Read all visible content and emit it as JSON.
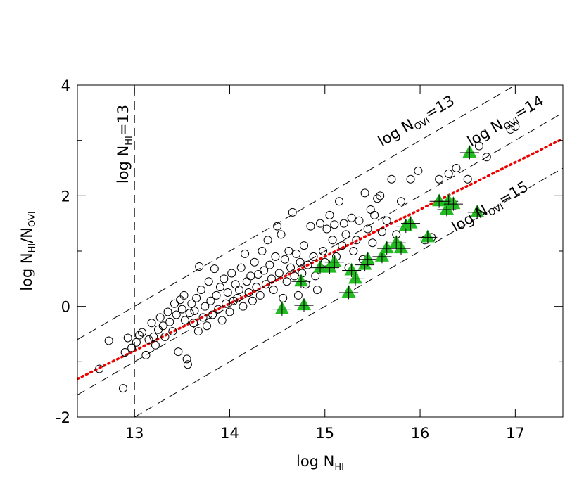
{
  "chart_data": {
    "type": "scatter",
    "x_label": [
      "log N",
      "HI"
    ],
    "y_label": [
      "log N",
      "HI",
      "/N",
      "OVI"
    ],
    "xlim": [
      12.4,
      17.5
    ],
    "ylim": [
      -2,
      4
    ],
    "xticks": [
      13,
      14,
      15,
      16,
      17
    ],
    "yticks": [
      -2,
      0,
      2,
      4
    ],
    "yminorticks": [
      -1,
      1,
      3
    ],
    "series": [
      {
        "marker": "circle",
        "color": "#000000",
        "x": [
          12.63,
          12.73,
          12.88,
          12.9,
          12.93,
          12.97,
          13.02,
          13.05,
          13.08,
          13.12,
          13.15,
          13.18,
          13.2,
          13.22,
          13.25,
          13.27,
          13.3,
          13.32,
          13.35,
          13.37,
          13.4,
          13.42,
          13.44,
          13.46,
          13.48,
          13.5,
          13.52,
          13.53,
          13.55,
          13.56,
          13.58,
          13.6,
          13.62,
          13.63,
          13.65,
          13.67,
          13.68,
          13.7,
          13.72,
          13.74,
          13.76,
          13.78,
          13.8,
          13.82,
          13.84,
          13.86,
          13.88,
          13.9,
          13.92,
          13.94,
          13.96,
          13.98,
          14.0,
          14.02,
          14.04,
          14.06,
          14.08,
          14.1,
          14.12,
          14.14,
          14.16,
          14.18,
          14.2,
          14.22,
          14.24,
          14.26,
          14.28,
          14.3,
          14.32,
          14.34,
          14.36,
          14.38,
          14.4,
          14.42,
          14.44,
          14.46,
          14.48,
          14.5,
          14.52,
          14.54,
          14.56,
          14.58,
          14.6,
          14.62,
          14.64,
          14.66,
          14.68,
          14.7,
          14.72,
          14.74,
          14.76,
          14.78,
          14.8,
          14.82,
          14.85,
          14.88,
          14.9,
          14.92,
          14.95,
          14.98,
          15.0,
          15.02,
          15.05,
          15.08,
          15.1,
          15.12,
          15.15,
          15.18,
          15.2,
          15.22,
          15.25,
          15.28,
          15.3,
          15.33,
          15.36,
          15.4,
          15.42,
          15.45,
          15.48,
          15.5,
          15.52,
          15.55,
          15.58,
          15.6,
          15.65,
          15.7,
          15.75,
          15.8,
          15.9,
          15.98,
          16.05,
          16.12,
          16.2,
          16.3,
          16.38,
          16.5,
          16.62,
          16.7,
          16.95,
          17.0
        ],
        "values": [
          -1.13,
          -0.62,
          -1.48,
          -0.83,
          -0.57,
          -0.75,
          -0.65,
          -0.52,
          -0.47,
          -0.88,
          -0.6,
          -0.3,
          -0.55,
          -0.7,
          -0.42,
          -0.2,
          -0.35,
          -0.55,
          -0.1,
          -0.28,
          -0.45,
          0.05,
          -0.15,
          -0.82,
          0.12,
          -0.05,
          0.2,
          -0.25,
          -0.95,
          -1.05,
          -0.12,
          0.05,
          -0.3,
          -0.08,
          0.15,
          -0.45,
          0.72,
          0.3,
          -0.2,
          0.0,
          -0.35,
          0.45,
          0.1,
          -0.15,
          0.68,
          0.2,
          -0.05,
          0.35,
          -0.25,
          0.5,
          0.05,
          0.25,
          -0.1,
          0.6,
          0.1,
          0.4,
          0.15,
          0.3,
          0.7,
          0.0,
          0.95,
          0.45,
          0.25,
          0.55,
          0.1,
          0.8,
          0.35,
          0.58,
          0.2,
          1.0,
          0.65,
          0.4,
          1.2,
          0.75,
          0.5,
          0.3,
          0.9,
          1.45,
          0.6,
          1.3,
          0.15,
          0.85,
          0.45,
          1.0,
          0.7,
          1.7,
          0.55,
          0.95,
          0.2,
          0.8,
          0.6,
          1.1,
          0.4,
          0.75,
          1.45,
          0.9,
          0.55,
          0.3,
          1.5,
          1.0,
          0.8,
          1.4,
          1.65,
          1.2,
          1.48,
          0.9,
          1.9,
          1.1,
          1.5,
          1.3,
          0.7,
          1.6,
          1.0,
          1.2,
          1.55,
          0.85,
          2.05,
          1.4,
          1.75,
          1.15,
          1.65,
          1.95,
          2.0,
          1.35,
          1.55,
          2.3,
          1.3,
          1.9,
          2.3,
          2.45,
          1.2,
          1.25,
          2.3,
          2.4,
          2.5,
          2.3,
          2.9,
          2.7,
          3.2,
          3.25
        ]
      },
      {
        "marker": "triangle",
        "color": "#22bb22",
        "xerr": 0.1,
        "yerr": 0.12,
        "x": [
          14.55,
          14.75,
          14.78,
          14.95,
          15.05,
          15.1,
          15.25,
          15.28,
          15.32,
          15.42,
          15.45,
          15.6,
          15.65,
          15.75,
          15.8,
          15.85,
          15.9,
          16.08,
          16.2,
          16.28,
          16.3,
          16.35,
          16.52,
          16.6
        ],
        "values": [
          -0.05,
          0.45,
          0.02,
          0.7,
          0.7,
          0.8,
          0.25,
          0.65,
          0.5,
          0.75,
          0.85,
          0.9,
          1.05,
          1.15,
          1.05,
          1.45,
          1.5,
          1.25,
          1.9,
          1.75,
          1.9,
          1.85,
          2.78,
          1.7
        ]
      }
    ],
    "fit": {
      "color": "#ee0000",
      "x": [
        12.4,
        17.5
      ],
      "y": [
        -1.31,
        3.03
      ]
    },
    "reference_lines": [
      {
        "text": [
          "log N",
          "HI",
          "=13"
        ],
        "x": [
          13,
          13
        ],
        "y": [
          -2,
          4
        ]
      },
      {
        "text": [
          "log N",
          "OVI",
          "=13"
        ],
        "x": [
          12.4,
          17.0
        ],
        "y": [
          -0.6,
          4
        ]
      },
      {
        "text": [
          "log N",
          "OVI",
          "=14"
        ],
        "x": [
          12.4,
          17.5
        ],
        "y": [
          -1.6,
          3.5
        ]
      },
      {
        "text": [
          "log N",
          "OVI",
          "=15"
        ],
        "x": [
          13,
          17.5
        ],
        "y": [
          -2,
          2.5
        ]
      }
    ]
  }
}
